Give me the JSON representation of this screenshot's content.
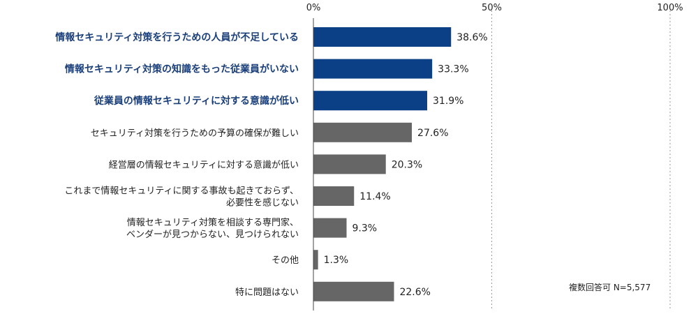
{
  "chart_data": {
    "type": "bar",
    "orientation": "horizontal",
    "categories": [
      [
        "情報セキュリティ対策を行うための人員が不足している"
      ],
      [
        "情報セキュリティ対策の知識をもった従業員がいない"
      ],
      [
        "従業員の情報セキュリティに対する意識が低い"
      ],
      [
        "セキュリティ対策を行うための予算の確保が難しい"
      ],
      [
        "経営層の情報セキュリティに対する意識が低い"
      ],
      [
        "これまで情報セキュリティに関する事故も起きておらず、",
        "必要性を感じない"
      ],
      [
        "情報セキュリティ対策を相談する専門家、",
        "ベンダーが見つからない、見つけられない"
      ],
      [
        "その他"
      ],
      [
        "特に問題はない"
      ]
    ],
    "values": [
      38.6,
      33.3,
      31.9,
      27.6,
      20.3,
      11.4,
      9.3,
      1.3,
      22.6
    ],
    "value_labels": [
      "38.6%",
      "33.3%",
      "31.9%",
      "27.6%",
      "20.3%",
      "11.4%",
      "9.3%",
      "1.3%",
      "22.6%"
    ],
    "highlighted": [
      true,
      true,
      true,
      false,
      false,
      false,
      false,
      false,
      false
    ],
    "xlim": [
      0,
      100
    ],
    "xticks": [
      0,
      50,
      100
    ],
    "xtick_labels": [
      "0%",
      "50%",
      "100%"
    ],
    "grid": "vertical dotted at 50% and 100%",
    "colors": {
      "highlight_bar": "#0b3f86",
      "normal_bar": "#666666",
      "highlight_label": "#1a3f7a",
      "normal_label": "#222222"
    }
  },
  "note": "複数回答可 N=5,577"
}
